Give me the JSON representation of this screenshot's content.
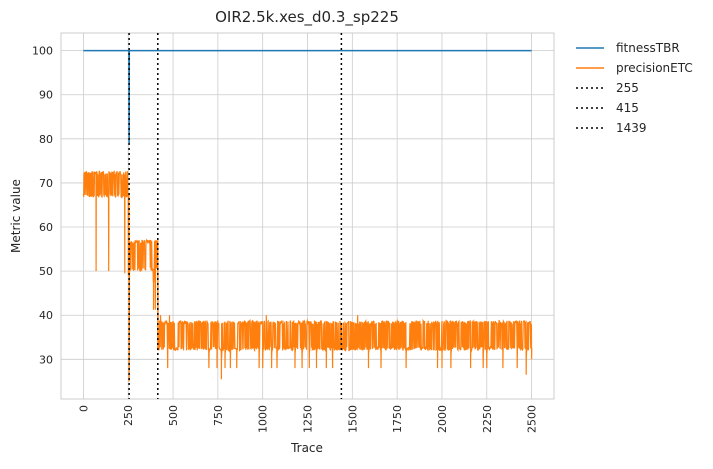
{
  "chart_data": {
    "type": "line",
    "title": "OIR2.5k.xes_d0.3_sp225",
    "xlabel": "Trace",
    "ylabel": "Metric value",
    "xlim": [
      -125,
      2625
    ],
    "ylim": [
      21,
      104
    ],
    "x_ticks": [
      0,
      250,
      500,
      750,
      1000,
      1250,
      1500,
      1750,
      2000,
      2250,
      2500
    ],
    "y_ticks": [
      30,
      40,
      50,
      60,
      70,
      80,
      90,
      100
    ],
    "grid": true,
    "legend_position": "outside-right",
    "series": [
      {
        "name": "fitnessTBR",
        "color": "#1f77b4",
        "segments": [
          {
            "x_start": 0,
            "x_end": 2500,
            "y": 100
          }
        ],
        "dip": {
          "x": 255,
          "y_min": 79
        }
      },
      {
        "name": "precisionETC",
        "color": "#ff7f0e",
        "segments": [
          {
            "x_start": 0,
            "x_end": 255,
            "low": 66.7,
            "high": 72.7
          },
          {
            "x_start": 255,
            "x_end": 415,
            "low": 50,
            "high": 57.1
          },
          {
            "x_start": 415,
            "x_end": 2500,
            "low": 32,
            "high": 38.8
          }
        ],
        "spikes": [
          {
            "x": 70,
            "y": 65
          },
          {
            "x": 140,
            "y": 65
          },
          {
            "x": 230,
            "y": 64
          },
          {
            "x": 250,
            "y": 63
          },
          {
            "x": 255,
            "y": 25
          },
          {
            "x": 390,
            "y": 47.5
          },
          {
            "x": 400,
            "y": 47.5
          },
          {
            "x": 415,
            "y": 57
          },
          {
            "x": 430,
            "y": 40
          },
          {
            "x": 470,
            "y": 28
          },
          {
            "x": 480,
            "y": 40
          },
          {
            "x": 700,
            "y": 28
          },
          {
            "x": 745,
            "y": 28
          },
          {
            "x": 770,
            "y": 25.5
          },
          {
            "x": 790,
            "y": 28
          },
          {
            "x": 820,
            "y": 28
          },
          {
            "x": 855,
            "y": 28
          },
          {
            "x": 980,
            "y": 28
          },
          {
            "x": 1000,
            "y": 28
          },
          {
            "x": 1020,
            "y": 40
          },
          {
            "x": 1050,
            "y": 28
          },
          {
            "x": 1080,
            "y": 28
          },
          {
            "x": 1180,
            "y": 28
          },
          {
            "x": 1220,
            "y": 28
          },
          {
            "x": 1260,
            "y": 28
          },
          {
            "x": 1300,
            "y": 28
          },
          {
            "x": 1355,
            "y": 28
          },
          {
            "x": 1390,
            "y": 28
          },
          {
            "x": 1530,
            "y": 40
          },
          {
            "x": 1590,
            "y": 28
          },
          {
            "x": 1660,
            "y": 28
          },
          {
            "x": 1800,
            "y": 28
          },
          {
            "x": 1975,
            "y": 28
          },
          {
            "x": 2000,
            "y": 28
          },
          {
            "x": 2050,
            "y": 28
          },
          {
            "x": 2160,
            "y": 28
          },
          {
            "x": 2230,
            "y": 28
          },
          {
            "x": 2250,
            "y": 28
          },
          {
            "x": 2340,
            "y": 28
          },
          {
            "x": 2420,
            "y": 28
          },
          {
            "x": 2470,
            "y": 26.5
          },
          {
            "x": 2500,
            "y": 30
          }
        ]
      }
    ],
    "vlines": [
      {
        "name": "255",
        "x": 255,
        "color": "#000000",
        "style": "dotted"
      },
      {
        "name": "415",
        "x": 415,
        "color": "#000000",
        "style": "dotted"
      },
      {
        "name": "1439",
        "x": 1439,
        "color": "#000000",
        "style": "dotted"
      }
    ]
  }
}
